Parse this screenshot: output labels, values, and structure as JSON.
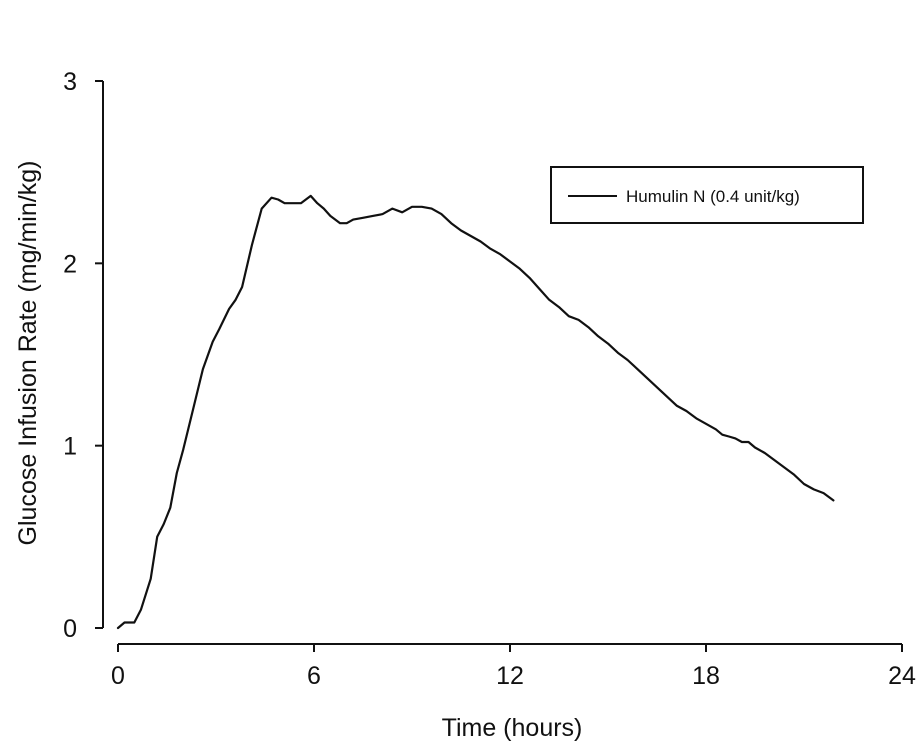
{
  "chart_data": {
    "type": "line",
    "title": "",
    "xlabel": "Time (hours)",
    "ylabel": "Glucose Infusion Rate (mg/min/kg)",
    "xlim": [
      0,
      24
    ],
    "ylim": [
      0,
      3
    ],
    "xticks": [
      0,
      6,
      12,
      18,
      24
    ],
    "xtick_labels": [
      "0",
      "6",
      "12",
      "18",
      "24"
    ],
    "yticks": [
      0,
      1,
      2,
      3
    ],
    "ytick_labels": [
      "0",
      "1",
      "2",
      "3"
    ],
    "grid": false,
    "legend_position": "top-right",
    "colors": {
      "line": "#111111",
      "axis": "#111111",
      "background": "#ffffff"
    },
    "series": [
      {
        "name": "Humulin N (0.4 unit/kg)",
        "x": [
          0,
          0.2,
          0.5,
          0.7,
          1.0,
          1.2,
          1.4,
          1.6,
          1.8,
          2.0,
          2.3,
          2.6,
          2.9,
          3.1,
          3.4,
          3.6,
          3.8,
          4.1,
          4.4,
          4.7,
          4.9,
          5.1,
          5.3,
          5.6,
          5.9,
          6.1,
          6.3,
          6.5,
          6.8,
          7.0,
          7.2,
          7.5,
          7.8,
          8.1,
          8.4,
          8.7,
          9.0,
          9.3,
          9.6,
          9.9,
          10.2,
          10.5,
          10.8,
          11.1,
          11.4,
          11.7,
          12.0,
          12.3,
          12.6,
          12.9,
          13.2,
          13.5,
          13.8,
          14.1,
          14.4,
          14.7,
          15.0,
          15.3,
          15.6,
          15.9,
          16.2,
          16.5,
          16.8,
          17.1,
          17.4,
          17.7,
          18.0,
          18.3,
          18.5,
          18.7,
          18.9,
          19.1,
          19.3,
          19.5,
          19.8,
          20.1,
          20.4,
          20.7,
          21.0,
          21.3,
          21.6,
          21.9
        ],
        "y": [
          0.0,
          0.03,
          0.03,
          0.1,
          0.27,
          0.5,
          0.57,
          0.66,
          0.85,
          0.98,
          1.2,
          1.42,
          1.57,
          1.64,
          1.75,
          1.8,
          1.87,
          2.1,
          2.3,
          2.36,
          2.35,
          2.33,
          2.33,
          2.33,
          2.37,
          2.33,
          2.3,
          2.26,
          2.22,
          2.22,
          2.24,
          2.25,
          2.26,
          2.27,
          2.3,
          2.28,
          2.31,
          2.31,
          2.3,
          2.27,
          2.22,
          2.18,
          2.15,
          2.12,
          2.08,
          2.05,
          2.01,
          1.97,
          1.92,
          1.86,
          1.8,
          1.76,
          1.71,
          1.69,
          1.65,
          1.6,
          1.56,
          1.51,
          1.47,
          1.42,
          1.37,
          1.32,
          1.27,
          1.22,
          1.19,
          1.15,
          1.12,
          1.09,
          1.06,
          1.05,
          1.04,
          1.02,
          1.02,
          0.99,
          0.96,
          0.92,
          0.88,
          0.84,
          0.79,
          0.76,
          0.74,
          0.7
        ]
      }
    ]
  }
}
